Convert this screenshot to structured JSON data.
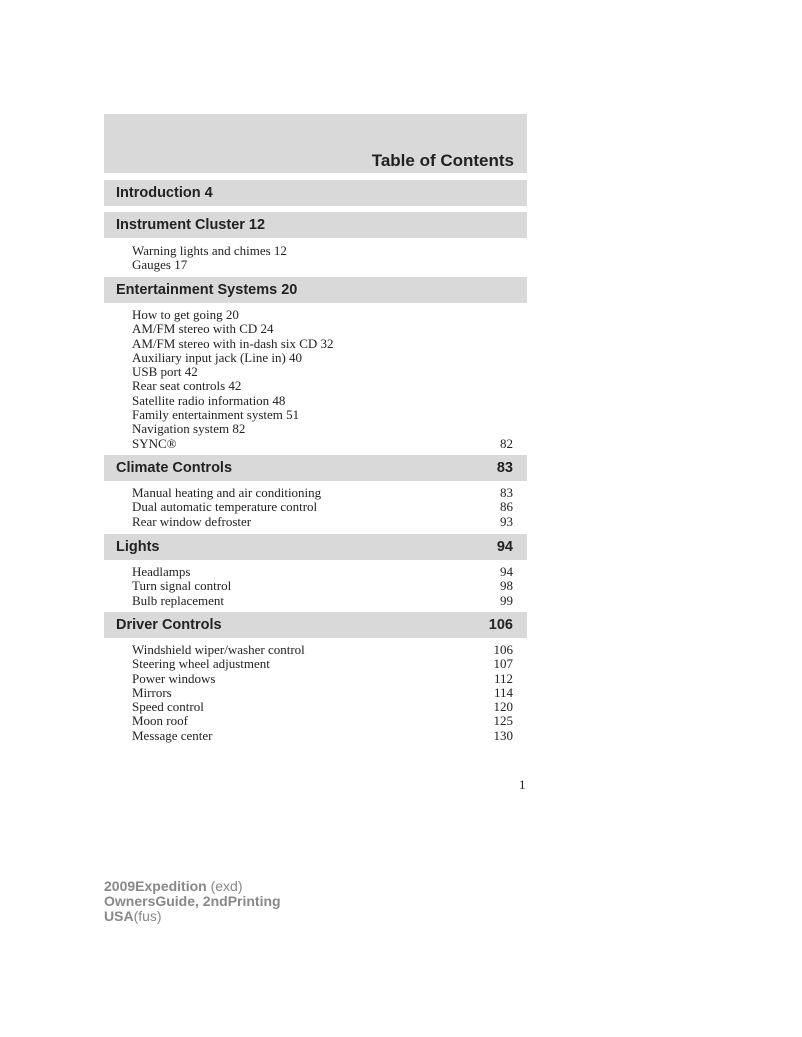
{
  "header": {
    "title": "Table of Contents"
  },
  "sections": [
    {
      "title": "Introduction 4",
      "page": "",
      "entries": []
    },
    {
      "title": "Instrument Cluster 12",
      "page": "",
      "entries": [
        {
          "label": "Warning lights and chimes 12",
          "page": ""
        },
        {
          "label": "Gauges 17",
          "page": ""
        }
      ]
    },
    {
      "title": "Entertainment Systems 20",
      "page": "",
      "entries": [
        {
          "label": "How to get going 20",
          "page": ""
        },
        {
          "label": "AM/FM stereo with CD 24",
          "page": ""
        },
        {
          "label": "AM/FM stereo with in-dash six CD 32",
          "page": ""
        },
        {
          "label": "Auxiliary input jack (Line in) 40",
          "page": ""
        },
        {
          "label": "USB port 42",
          "page": ""
        },
        {
          "label": "Rear seat controls 42",
          "page": ""
        },
        {
          "label": "Satellite radio information 48",
          "page": ""
        },
        {
          "label": "Family entertainment system 51",
          "page": ""
        },
        {
          "label": "Navigation system 82",
          "page": ""
        },
        {
          "label": "SYNC®",
          "page": "82"
        }
      ]
    },
    {
      "title": "Climate Controls",
      "page": "83",
      "entries": [
        {
          "label": "Manual heating and air conditioning",
          "page": "83"
        },
        {
          "label": "Dual automatic temperature control",
          "page": "86"
        },
        {
          "label": "Rear window defroster",
          "page": "93"
        }
      ]
    },
    {
      "title": "Lights",
      "page": "94",
      "entries": [
        {
          "label": "Headlamps",
          "page": "94"
        },
        {
          "label": "Turn signal control",
          "page": "98"
        },
        {
          "label": "Bulb replacement",
          "page": "99"
        }
      ]
    },
    {
      "title": "Driver Controls",
      "page": "106",
      "entries": [
        {
          "label": "Windshield wiper/washer control",
          "page": "106"
        },
        {
          "label": "Steering wheel adjustment",
          "page": "107"
        },
        {
          "label": "Power windows",
          "page": "112"
        },
        {
          "label": "Mirrors",
          "page": "114"
        },
        {
          "label": "Speed control",
          "page": "120"
        },
        {
          "label": "Moon roof",
          "page": "125"
        },
        {
          "label": "Message center",
          "page": "130"
        }
      ]
    }
  ],
  "page_number": "1",
  "footer": {
    "line1_bold": "2009Expedition",
    "line1_normal": "(exd)",
    "line2": "OwnersGuide, 2ndPrinting",
    "line3_bold": "USA",
    "line3_normal": "(fus)"
  }
}
